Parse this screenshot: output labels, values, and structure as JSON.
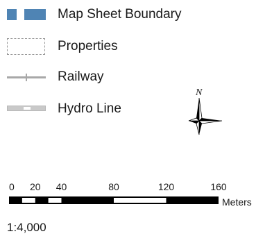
{
  "legend": {
    "items": [
      {
        "label": "Map Sheet Boundary",
        "symbol": "filled-blue-blocks"
      },
      {
        "label": "Properties",
        "symbol": "dashed-rectangle"
      },
      {
        "label": "Railway",
        "symbol": "line-with-tick"
      },
      {
        "label": "Hydro Line",
        "symbol": "dashed-double-line"
      }
    ]
  },
  "north_arrow": {
    "label": "N",
    "icon": "compass-star-icon"
  },
  "scalebar": {
    "ticks": [
      "0",
      "20",
      "40",
      "80",
      "120",
      "160"
    ],
    "tick_values": [
      0,
      20,
      40,
      80,
      120,
      160
    ],
    "unit": "Meters"
  },
  "scale_ratio": "1:4,000",
  "colors": {
    "map_sheet_boundary": "#4f84b4",
    "properties_border": "#9a9a9a",
    "railway": "#a8a8a8",
    "hydro_line": "#b8b8b8",
    "text": "#1a1a1a",
    "scalebar": "#000000"
  }
}
